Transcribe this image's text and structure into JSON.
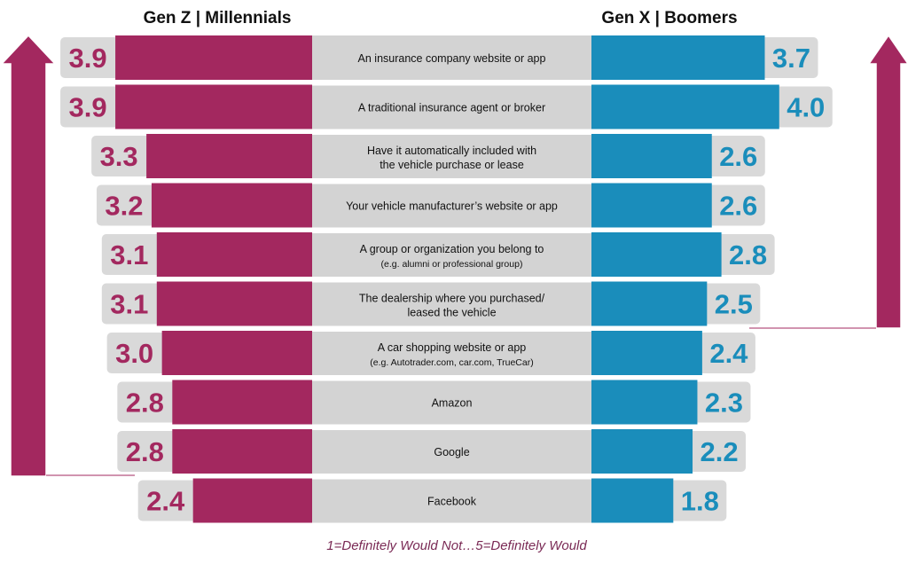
{
  "chart_data": {
    "type": "bar",
    "left_header": "Gen Z | Millennials",
    "right_header": "Gen X | Boomers",
    "footnote": "1=Definitely Would Not…5=Definitely Would",
    "colors": {
      "left": "#a3285f",
      "right": "#1a8dbb",
      "panel": "#d9d9d9",
      "center": "#d3d3d3",
      "footnote": "#7a2a55"
    },
    "categories": [
      {
        "line1": "An insurance company website or app",
        "line2": ""
      },
      {
        "line1": "A traditional insurance agent or broker",
        "line2": ""
      },
      {
        "line1": "Have it automatically included with",
        "line2": "the vehicle purchase or lease"
      },
      {
        "line1": "Your vehicle manufacturer’s website or app",
        "line2": ""
      },
      {
        "line1": "A group or organization you belong to",
        "line2": "(e.g. alumni or professional group)"
      },
      {
        "line1": "The dealership where you purchased/",
        "line2": "leased the vehicle"
      },
      {
        "line1": "A car shopping website or app",
        "line2": "(e.g. Autotrader.com, car.com, TrueCar)"
      },
      {
        "line1": "Amazon",
        "line2": ""
      },
      {
        "line1": "Google",
        "line2": ""
      },
      {
        "line1": "Facebook",
        "line2": ""
      }
    ],
    "series": [
      {
        "name": "Gen Z | Millennials",
        "values": [
          3.9,
          3.9,
          3.3,
          3.2,
          3.1,
          3.1,
          3.0,
          2.8,
          2.8,
          2.4
        ]
      },
      {
        "name": "Gen X | Boomers",
        "values": [
          3.7,
          4.0,
          2.6,
          2.6,
          2.8,
          2.5,
          2.4,
          2.3,
          2.2,
          1.8
        ]
      }
    ],
    "scale": [
      1,
      5
    ]
  }
}
